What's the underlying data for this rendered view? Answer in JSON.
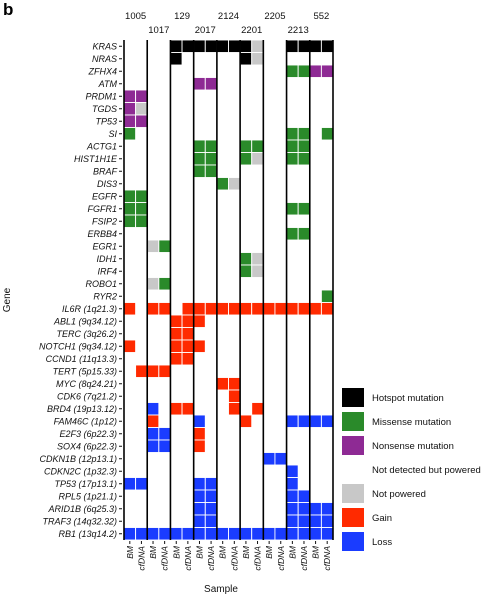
{
  "panel_label": "b",
  "chart_data": {
    "type": "heatmap",
    "xlabel": "Sample",
    "ylabel": "Gene",
    "patients": [
      "1005",
      "1017",
      "129",
      "2017",
      "2124",
      "2201",
      "2205",
      "2213",
      "552"
    ],
    "columns": [
      {
        "patient": "1005",
        "label": "BM"
      },
      {
        "patient": "1005",
        "label": "cfDNA"
      },
      {
        "patient": "1017",
        "label": "BM"
      },
      {
        "patient": "1017",
        "label": "cfDNA"
      },
      {
        "patient": "129",
        "label": "BM"
      },
      {
        "patient": "129",
        "label": "cfDNA"
      },
      {
        "patient": "2017",
        "label": "BM"
      },
      {
        "patient": "2017",
        "label": "cfDNA"
      },
      {
        "patient": "2124",
        "label": "BM"
      },
      {
        "patient": "2124",
        "label": "cfDNA"
      },
      {
        "patient": "2201",
        "label": "BM"
      },
      {
        "patient": "2201",
        "label": "cfDNA"
      },
      {
        "patient": "2205",
        "label": "BM"
      },
      {
        "patient": "2205",
        "label": "cfDNA"
      },
      {
        "patient": "2213",
        "label": "BM"
      },
      {
        "patient": "2213",
        "label": "cfDNA"
      },
      {
        "patient": "552",
        "label": "BM"
      },
      {
        "patient": "552",
        "label": "cfDNA"
      }
    ],
    "rows": [
      {
        "label": "KRAS",
        "type": "mut"
      },
      {
        "label": "NRAS",
        "type": "mut"
      },
      {
        "label": "ZFHX4",
        "type": "mut"
      },
      {
        "label": "ATM",
        "type": "mut"
      },
      {
        "label": "PRDM1",
        "type": "mut"
      },
      {
        "label": "TGDS",
        "type": "mut"
      },
      {
        "label": "TP53",
        "type": "mut"
      },
      {
        "label": "SI",
        "type": "mut"
      },
      {
        "label": "ACTG1",
        "type": "mut"
      },
      {
        "label": "HIST1H1E",
        "type": "mut"
      },
      {
        "label": "BRAF",
        "type": "mut"
      },
      {
        "label": "DIS3",
        "type": "mut"
      },
      {
        "label": "EGFR",
        "type": "mut"
      },
      {
        "label": "FGFR1",
        "type": "mut"
      },
      {
        "label": "FSIP2",
        "type": "mut"
      },
      {
        "label": "ERBB4",
        "type": "mut"
      },
      {
        "label": "EGR1",
        "type": "mut"
      },
      {
        "label": "IDH1",
        "type": "mut"
      },
      {
        "label": "IRF4",
        "type": "mut"
      },
      {
        "label": "ROBO1",
        "type": "mut"
      },
      {
        "label": "RYR2",
        "type": "mut"
      },
      {
        "label": "IL6R (1q21.3)",
        "type": "cn"
      },
      {
        "label": "ABL1 (9q34.12)",
        "type": "cn"
      },
      {
        "label": "TERC (3q26.2)",
        "type": "cn"
      },
      {
        "label": "NOTCH1 (9q34.12)",
        "type": "cn"
      },
      {
        "label": "CCND1 (11q13.3)",
        "type": "cn"
      },
      {
        "label": "TERT (5p15.33)",
        "type": "cn"
      },
      {
        "label": "MYC (8q24.21)",
        "type": "cn"
      },
      {
        "label": "CDK6 (7q21.2)",
        "type": "cn"
      },
      {
        "label": "BRD4 (19p13.12)",
        "type": "cn"
      },
      {
        "label": "FAM46C (1p12)",
        "type": "cn"
      },
      {
        "label": "E2F3 (6p22.3)",
        "type": "cn"
      },
      {
        "label": "SOX4 (6p22.3)",
        "type": "cn"
      },
      {
        "label": "CDKN1B (12p13.1)",
        "type": "cn"
      },
      {
        "label": "CDKN2C (1p32.3)",
        "type": "cn"
      },
      {
        "label": "TP53 (17p13.1)",
        "type": "cn"
      },
      {
        "label": "RPL5 (1p21.1)",
        "type": "cn"
      },
      {
        "label": "ARID1B (6q25.3)",
        "type": "cn"
      },
      {
        "label": "TRAF3 (14q32.32)",
        "type": "cn"
      },
      {
        "label": "RB1 (13q14.2)",
        "type": "cn"
      }
    ],
    "categories": {
      "H": {
        "name": "Hotspot mutation",
        "color": "#000000"
      },
      "M": {
        "name": "Missense mutation",
        "color": "#2a8a2a"
      },
      "N": {
        "name": "Nonsense mutation",
        "color": "#8e2a94"
      },
      "W": {
        "name": "Not detected but powered",
        "color": "#ffffff"
      },
      "P": {
        "name": "Not powered",
        "color": "#c8c8c8"
      },
      "G": {
        "name": "Gain",
        "color": "#ff2a00"
      },
      "L": {
        "name": "Loss",
        "color": "#1a3cff"
      }
    },
    "legend_order": [
      "H",
      "M",
      "N",
      "W",
      "P",
      "G",
      "L"
    ],
    "matrix": [
      "WWWWHHHHHHHPWWHHHH",
      "WWWWHWWWWWHPWWWWWW",
      "WWWWWWWWWWWWWWMMNN",
      "WWWWWWNNWWWWWWWWWW",
      "NNWWWWWWWWWWWWWWWW",
      "NPWWWWWWWWWWWWWWWW",
      "NNWWWWWWWWWWWWWWWW",
      "MWWWWWWWWWWWWWMMWM",
      "WWWWWWMMWWMMWWMMWW",
      "WWWWWWMMWWMPWWMMWW",
      "WWWWWWMMWWWWWWWWWW",
      "WWWWWWWWMPWWWWWWWW",
      "MMWWWWWWWWWWWWWWWW",
      "MMWWWWWWWWWWWWMMWW",
      "MMWWWWWWWWWWWWWWWW",
      "WWWWWWWWWWWWWWMMWW",
      "WWPMWWWWWWWWWWWWWW",
      "WWWWWWWWWWMPWWWWWW",
      "WWWWWWWWWWMPWWWWWW",
      "WWPMWWWWWWWWWWWWWW",
      "WWWWWWWWWWWWWWWWWM",
      "GWGGWGGGGGGGGGGGGG",
      "WWWWGGGWWWWWWWWWWW",
      "WWWWGGWWWWWWWWWWWW",
      "GWWWGGGWWWWWWWWWWW",
      "WWWWGGWWWWWWWWWWWW",
      "WGGGWWWWWWWWWWWWWW",
      "WWWWWWWWGGWWWWWWWW",
      "WWWWWWWWWGWWWWWWWW",
      "WWLWGGWWWGWGWWWWWW",
      "WWGWWWLWWWGWWWLLLL",
      "WWLLWWGWWWWWWWWWWW",
      "WWLLWWGWWWWWWWWWWW",
      "WWWWWWWWWWWWLLWWWW",
      "WWWWWWWWWWWWWWLWWW",
      "LLWWWWLLWWWWWWLWWW",
      "WWWWWWLLWWWWWWLLWW",
      "WWWWWWLLWWWWWWLLLL",
      "WWWWWWLLWWWWWWLLLL",
      "LLLLLLLLLLLLLLLLLL"
    ]
  }
}
